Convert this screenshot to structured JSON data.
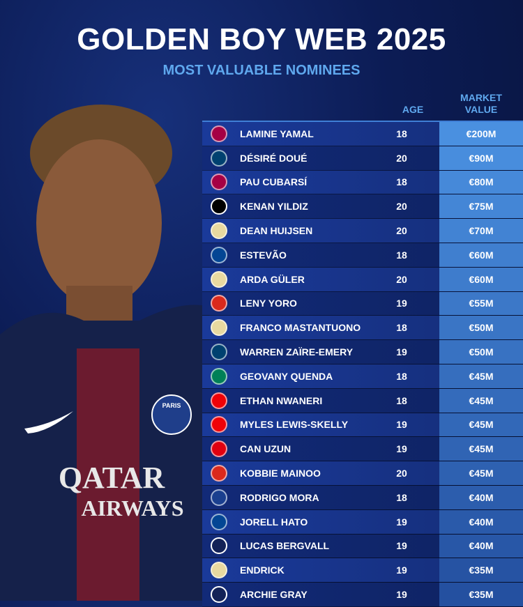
{
  "header": {
    "title": "GOLDEN BOY WEB 2025",
    "subtitle": "MOST VALUABLE NOMINEES"
  },
  "columns": {
    "age": "AGE",
    "market_value_line1": "MARKET",
    "market_value_line2": "VALUE"
  },
  "photo": {
    "shirt_sponsor_line1": "QATAR",
    "shirt_sponsor_line2": "AIRWAYS",
    "badge_text": "PARIS"
  },
  "club_colors": {
    "barcelona": "#a50044",
    "psg": "#004170",
    "juventus": "#000000",
    "real-madrid": "#e8d9a0",
    "chelsea": "#034694",
    "man-utd": "#da291c",
    "sporting": "#008057",
    "arsenal": "#ef0107",
    "frankfurt": "#e1000f",
    "porto": "#1a3f8f",
    "tottenham": "#132257"
  },
  "rows": [
    {
      "club": "barcelona",
      "name": "LAMINE YAMAL",
      "age": "18",
      "value": "€200M"
    },
    {
      "club": "psg",
      "name": "DÉSIRÉ DOUÉ",
      "age": "20",
      "value": "€90M"
    },
    {
      "club": "barcelona",
      "name": "PAU CUBARSÍ",
      "age": "18",
      "value": "€80M"
    },
    {
      "club": "juventus",
      "name": "KENAN YILDIZ",
      "age": "20",
      "value": "€75M"
    },
    {
      "club": "real-madrid",
      "name": "DEAN HUIJSEN",
      "age": "20",
      "value": "€70M"
    },
    {
      "club": "chelsea",
      "name": "ESTEVÃO",
      "age": "18",
      "value": "€60M"
    },
    {
      "club": "real-madrid",
      "name": "ARDA GÜLER",
      "age": "20",
      "value": "€60M"
    },
    {
      "club": "man-utd",
      "name": "LENY YORO",
      "age": "19",
      "value": "€55M"
    },
    {
      "club": "real-madrid",
      "name": "FRANCO MASTANTUONO",
      "age": "18",
      "value": "€50M"
    },
    {
      "club": "psg",
      "name": "WARREN ZAÏRE-EMERY",
      "age": "19",
      "value": "€50M"
    },
    {
      "club": "sporting",
      "name": "GEOVANY QUENDA",
      "age": "18",
      "value": "€45M"
    },
    {
      "club": "arsenal",
      "name": "ETHAN NWANERI",
      "age": "18",
      "value": "€45M"
    },
    {
      "club": "arsenal",
      "name": "MYLES LEWIS-SKELLY",
      "age": "19",
      "value": "€45M"
    },
    {
      "club": "frankfurt",
      "name": "CAN UZUN",
      "age": "19",
      "value": "€45M"
    },
    {
      "club": "man-utd",
      "name": "KOBBIE MAINOO",
      "age": "20",
      "value": "€45M"
    },
    {
      "club": "porto",
      "name": "RODRIGO MORA",
      "age": "18",
      "value": "€40M"
    },
    {
      "club": "chelsea",
      "name": "JORELL HATO",
      "age": "19",
      "value": "€40M"
    },
    {
      "club": "tottenham",
      "name": "LUCAS BERGVALL",
      "age": "19",
      "value": "€40M"
    },
    {
      "club": "real-madrid",
      "name": "ENDRICK",
      "age": "19",
      "value": "€35M"
    },
    {
      "club": "tottenham",
      "name": "ARCHIE GRAY",
      "age": "19",
      "value": "€35M"
    }
  ]
}
